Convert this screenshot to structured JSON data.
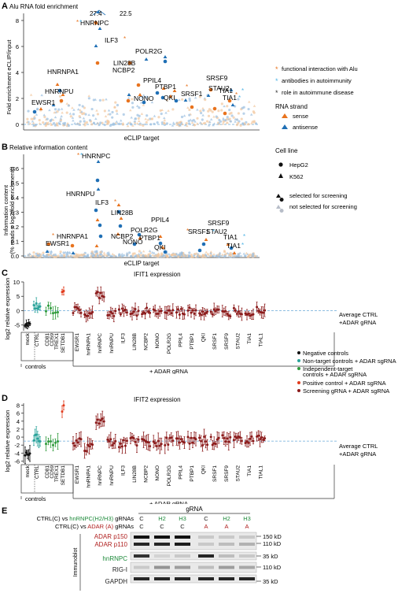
{
  "colors": {
    "orange": "#e8731e",
    "blue": "#1f6fb5",
    "sky": "#4fb4e6",
    "darkred": "#8b1a1a",
    "red": "#e23b1c",
    "green": "#2e9a3a",
    "teal": "#2aa39a",
    "dashed": "#6aa9d8",
    "hnrnpc_green": "#1d8a3a",
    "adar_red": "#b0201f",
    "gray": "#9aa3b5",
    "light_orange": "#f2c79e",
    "light_blue": "#9bbfe0"
  },
  "panelA": {
    "letter": "A",
    "title": "Alu RNA fold enrichment",
    "ylabel": "Fold enrichment eCLIP/input",
    "xlabel": "eCLIP target",
    "yticks": [
      "0",
      "2",
      "4",
      "6",
      "8"
    ],
    "top_values": [
      "27.4",
      "22.5"
    ],
    "genes": [
      "HNRNPC",
      "ILF3",
      "POLR2G",
      "LIN28B",
      "NCBP2",
      "HNRNPA1",
      "PPIL4",
      "PTBP1",
      "QKI",
      "HNRNPU",
      "NONO",
      "SRSF9",
      "STAU2",
      "SRSF1",
      "TIA1",
      "TIA1",
      "EWSR1"
    ],
    "legend": {
      "functional": "functional interaction with Alu",
      "antibodies": "antibodies in autoimmunity",
      "autoimmune": "role in autoimmune disease",
      "strand_title": "RNA strand",
      "sense": "sense",
      "antisense": "antisense"
    }
  },
  "panelB": {
    "letter": "B",
    "title": "Relative information content",
    "ylabel1": "Information content",
    "ylabel2": "(% reads x log2(fold enrichment))",
    "xlabel": "eCLIP target",
    "yticks": [
      "0.0",
      "0.1",
      "0.2",
      "0.3",
      "0.4",
      "0.5",
      "0.6"
    ],
    "genes": [
      "HNRNPC",
      "HNRNPU",
      "ILF3",
      "LIN28B",
      "PPIL4",
      "POLR2G",
      "NCBP2",
      "HNRNPA1",
      "EWSR1",
      "NONO",
      "PTBP1",
      "QKI",
      "SRSF9",
      "SRSF1",
      "STAU2",
      "TIA1",
      "TIA1"
    ],
    "legend": {
      "cell_line_title": "Cell line",
      "hepg2": "HepG2",
      "k562": "K562",
      "selected": "selected for screening",
      "not_selected": "not selected for screening"
    }
  },
  "panelC": {
    "letter": "C",
    "title": "IFIT1 expression",
    "ylabel": "log2 relative expression",
    "yticks": [
      "10",
      "5",
      "0",
      "-5"
    ],
    "side_label": [
      "Average CTRL",
      "+ADAR gRNA"
    ],
    "categories": [
      "mock",
      "CTRL",
      "CD81",
      "CD59",
      "TREX1",
      "SETDB1",
      "EWSR1",
      "hnRNPA1",
      "hnRNPC",
      "hnRNPU",
      "ILF3",
      "LIN28B",
      "NCBP2",
      "NONO",
      "POLR2G",
      "PPIL4",
      "PTBP1",
      "QKI",
      "SRSF1",
      "SRSF9",
      "STAU2",
      "TIA1",
      "TIAL1"
    ],
    "controls_label": "controls",
    "adar_label": "+ ADAR gRNA",
    "legend": {
      "negative": "Negative controls",
      "nontarget": "Non-target controls + ADAR sgRNA",
      "independent1": "Independent-target",
      "independent2": "controls + ADAR sgRNA",
      "positive": "Positive control + ADAR sgRNA",
      "screening": "Screening gRNA + ADAR sgRNA"
    }
  },
  "panelD": {
    "letter": "D",
    "title": "IFIT2 expression",
    "ylabel": "log2 relative expression",
    "yticks": [
      "8",
      "6",
      "4",
      "2",
      "0",
      "-2",
      "-4",
      "-6"
    ],
    "side_label": [
      "Average CTRL",
      "+ADAR gRNA"
    ],
    "categories": [
      "mock",
      "CTRL",
      "CD81",
      "CD59",
      "TREX1",
      "SETDB1",
      "EWSR1",
      "hnRNPA1",
      "hnRNPC",
      "hnRNPU",
      "ILF3",
      "LIN28B",
      "NCBP2",
      "NONO",
      "POLR2G",
      "PPIL4",
      "PTBP1",
      "QKI",
      "SRSF1",
      "SRSF9",
      "STAU2",
      "TIA1",
      "TIAL1"
    ],
    "controls_label": "controls",
    "adar_label": "+ ADAR gRNA"
  },
  "panelE": {
    "letter": "E",
    "grna_header": "gRNA",
    "row1_prefix": "CTRL(C) vs ",
    "row1_target": "hnRNPC(H2/H3)",
    "row1_suffix": " gRNAs",
    "row2_prefix": "CTRL(C) vs ",
    "row2_target": "ADAR (A)",
    "row2_suffix": " gRNAs",
    "lanes_row1": [
      "C",
      "H2",
      "H3",
      "C",
      "H2",
      "H3"
    ],
    "lanes_row2": [
      "C",
      "C",
      "C",
      "A",
      "A",
      "A"
    ],
    "blot_label_vertical": "Immunoblot",
    "bands": [
      "ADAR p150",
      "ADAR p110",
      "hnRNPC",
      "RIG-I",
      "GAPDH"
    ],
    "markers": [
      "150 kD",
      "110 kD",
      "35 kD",
      "110 kD",
      "35 kD"
    ]
  }
}
